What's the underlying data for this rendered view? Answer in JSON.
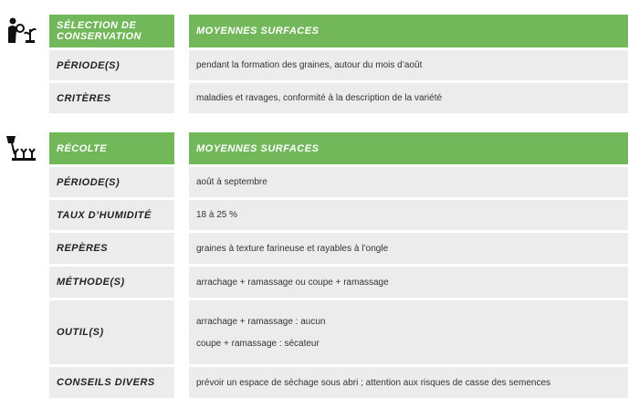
{
  "sections": [
    {
      "icon": "magnifier-plant-icon",
      "title": "SÉLECTION DE CONSERVATION",
      "column": "MOYENNES SURFACES",
      "rows": [
        {
          "label": "PÉRIODE(S)",
          "value": "pendant la formation des graines, autour du mois d’août"
        },
        {
          "label": "CRITÈRES",
          "value": "maladies et ravages, conformité à la description de la variété"
        }
      ]
    },
    {
      "icon": "harvest-plants-icon",
      "title": "RÉCOLTE",
      "column": "MOYENNES SURFACES",
      "rows": [
        {
          "label": "PÉRIODE(S)",
          "value": "août à septembre"
        },
        {
          "label": "TAUX D’HUMIDITÉ",
          "value": "18 à 25 %"
        },
        {
          "label": "REPÈRES",
          "value": "graines à texture farineuse et rayables à l’ongle"
        },
        {
          "label": "MÉTHODE(S)",
          "value": "arrachage + ramassage ou coupe + ramassage"
        },
        {
          "label": "OUTIL(S)",
          "values": [
            "arrachage + ramassage : aucun",
            "coupe + ramassage : sécateur"
          ]
        },
        {
          "label": "CONSEILS DIVERS",
          "value": "prévoir un espace de séchage sous abri ; attention aux risques de casse des semences"
        }
      ]
    }
  ]
}
